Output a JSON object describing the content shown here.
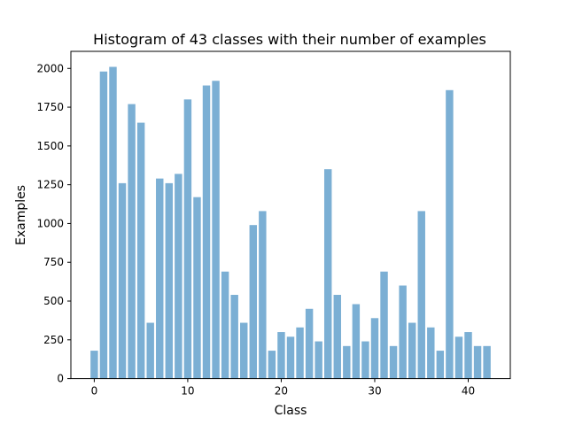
{
  "chart_data": {
    "type": "bar",
    "title": "Histogram of 43 classes with their number of examples",
    "xlabel": "Class",
    "ylabel": "Examples",
    "x": [
      0,
      1,
      2,
      3,
      4,
      5,
      6,
      7,
      8,
      9,
      10,
      11,
      12,
      13,
      14,
      15,
      16,
      17,
      18,
      19,
      20,
      21,
      22,
      23,
      24,
      25,
      26,
      27,
      28,
      29,
      30,
      31,
      32,
      33,
      34,
      35,
      36,
      37,
      38,
      39,
      40,
      41,
      42
    ],
    "values": [
      180,
      1980,
      2010,
      1260,
      1770,
      1650,
      360,
      1290,
      1260,
      1320,
      1800,
      1170,
      1890,
      1920,
      690,
      540,
      360,
      990,
      1080,
      180,
      300,
      270,
      330,
      450,
      240,
      1350,
      540,
      210,
      480,
      240,
      390,
      690,
      210,
      600,
      360,
      1080,
      330,
      180,
      1860,
      270,
      300,
      210,
      210
    ],
    "xlim": [
      -2.5,
      44.5
    ],
    "ylim": [
      0,
      2110
    ],
    "xticks": [
      0,
      10,
      20,
      30,
      40
    ],
    "yticks": [
      0,
      250,
      500,
      750,
      1000,
      1250,
      1500,
      1750,
      2000
    ],
    "grid": false,
    "legend": "none",
    "bar_color": "#7bafd4"
  }
}
